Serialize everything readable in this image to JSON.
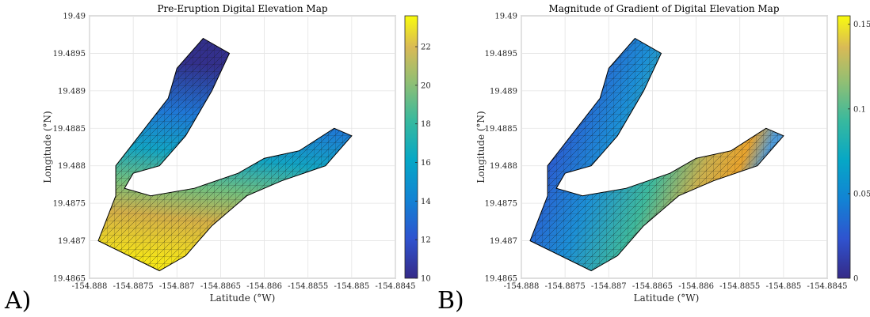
{
  "chart_data": [
    {
      "type": "heatmap",
      "panel_label": "A)",
      "title": "Pre-Eruption Digital Elevation Map",
      "xlabel": "Latitude (°W)",
      "ylabel": "Longitude (°N)",
      "xlim": [
        -154.888,
        -154.8845
      ],
      "ylim": [
        19.4865,
        19.49
      ],
      "xticks": [
        "-154.888",
        "-154.8875",
        "-154.887",
        "-154.8865",
        "-154.886",
        "-154.8855",
        "-154.885",
        "-154.8845"
      ],
      "yticks": [
        "19.4865",
        "19.487",
        "19.4875",
        "19.488",
        "19.4885",
        "19.489",
        "19.4895",
        "19.49"
      ],
      "colorbar": {
        "min": 10,
        "max": 23.6,
        "ticks": [
          "10",
          "12",
          "14",
          "16",
          "18",
          "20",
          "22"
        ],
        "colormap": "parula"
      },
      "grid": true,
      "shape_lat_lon": [
        [
          -154.8867,
          19.4897
        ],
        [
          -154.8864,
          19.4895
        ],
        [
          -154.8866,
          19.489
        ],
        [
          -154.8869,
          19.4884
        ],
        [
          -154.8872,
          19.488
        ],
        [
          -154.8875,
          19.4879
        ],
        [
          -154.8876,
          19.4877
        ],
        [
          -154.8873,
          19.4876
        ],
        [
          -154.8868,
          19.4877
        ],
        [
          -154.8863,
          19.4879
        ],
        [
          -154.886,
          19.4881
        ],
        [
          -154.8856,
          19.4882
        ],
        [
          -154.8852,
          19.4885
        ],
        [
          -154.885,
          19.4884
        ],
        [
          -154.8853,
          19.488
        ],
        [
          -154.8858,
          19.4878
        ],
        [
          -154.8862,
          19.4876
        ],
        [
          -154.8866,
          19.4872
        ],
        [
          -154.8869,
          19.4868
        ],
        [
          -154.8872,
          19.4866
        ],
        [
          -154.8879,
          19.487
        ],
        [
          -154.8877,
          19.4876
        ],
        [
          -154.8877,
          19.488
        ],
        [
          -154.8875,
          19.4883
        ],
        [
          -154.8871,
          19.4889
        ],
        [
          -154.887,
          19.4893
        ]
      ]
    },
    {
      "type": "heatmap",
      "panel_label": "B)",
      "title": "Magnitude of Gradient of Digital Elevation Map",
      "xlabel": "Latitude (°W)",
      "ylabel": "Longitude (°N)",
      "xlim": [
        -154.888,
        -154.8845
      ],
      "ylim": [
        19.4865,
        19.49
      ],
      "xticks": [
        "-154.888",
        "-154.8875",
        "-154.887",
        "-154.8865",
        "-154.886",
        "-154.8855",
        "-154.885",
        "-154.8845"
      ],
      "yticks": [
        "19.4865",
        "19.487",
        "19.4875",
        "19.488",
        "19.4885",
        "19.489",
        "19.4895",
        "19.49"
      ],
      "colorbar": {
        "min": 0,
        "max": 0.155,
        "ticks": [
          "0",
          "0.05",
          "0.1",
          "0.15"
        ],
        "colormap": "parula"
      },
      "grid": true,
      "shape_lat_lon": [
        [
          -154.8867,
          19.4897
        ],
        [
          -154.8864,
          19.4895
        ],
        [
          -154.8866,
          19.489
        ],
        [
          -154.8869,
          19.4884
        ],
        [
          -154.8872,
          19.488
        ],
        [
          -154.8875,
          19.4879
        ],
        [
          -154.8876,
          19.4877
        ],
        [
          -154.8873,
          19.4876
        ],
        [
          -154.8868,
          19.4877
        ],
        [
          -154.8863,
          19.4879
        ],
        [
          -154.886,
          19.4881
        ],
        [
          -154.8856,
          19.4882
        ],
        [
          -154.8852,
          19.4885
        ],
        [
          -154.885,
          19.4884
        ],
        [
          -154.8853,
          19.488
        ],
        [
          -154.8858,
          19.4878
        ],
        [
          -154.8862,
          19.4876
        ],
        [
          -154.8866,
          19.4872
        ],
        [
          -154.8869,
          19.4868
        ],
        [
          -154.8872,
          19.4866
        ],
        [
          -154.8879,
          19.487
        ],
        [
          -154.8877,
          19.4876
        ],
        [
          -154.8877,
          19.488
        ],
        [
          -154.8875,
          19.4883
        ],
        [
          -154.8871,
          19.4889
        ],
        [
          -154.887,
          19.4893
        ]
      ]
    }
  ]
}
